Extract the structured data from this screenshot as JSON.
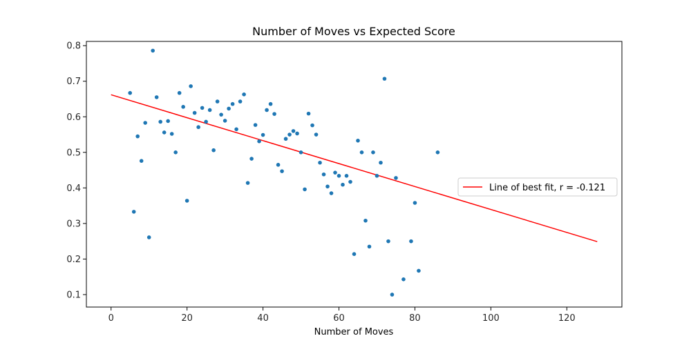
{
  "chart_data": {
    "type": "scatter",
    "title": "Number of Moves vs Expected Score",
    "xlabel": "Number of Moves",
    "ylabel": "",
    "xlim": [
      -6.5,
      134.5
    ],
    "ylim": [
      0.065,
      0.812
    ],
    "xticks": [
      0,
      20,
      40,
      60,
      80,
      100,
      120
    ],
    "yticks": [
      0.1,
      0.2,
      0.3,
      0.4,
      0.5,
      0.6,
      0.7,
      0.8
    ],
    "grid": false,
    "point_color": "#1f77b4",
    "line_color": "#ff0000",
    "series": [
      {
        "x": [
          5,
          6,
          7,
          8,
          9,
          10,
          11,
          12,
          13,
          14,
          15,
          16,
          17,
          18,
          19,
          20,
          21,
          22,
          23,
          24,
          25,
          26,
          27,
          28,
          29,
          30,
          31,
          32,
          33,
          34,
          35,
          36,
          37,
          38,
          39,
          40,
          41,
          42,
          43,
          44,
          45,
          46,
          47,
          48,
          49,
          50,
          51,
          52,
          53,
          54,
          55,
          56,
          57,
          58,
          59,
          60,
          61,
          62,
          63,
          64,
          65,
          66,
          67,
          68,
          69,
          70,
          71,
          72,
          73,
          74,
          75,
          77,
          79,
          80,
          81,
          86
        ],
        "y": [
          0.667,
          0.333,
          0.545,
          0.476,
          0.583,
          0.261,
          0.786,
          0.655,
          0.586,
          0.556,
          0.588,
          0.552,
          0.5,
          0.667,
          0.628,
          0.364,
          0.686,
          0.611,
          0.571,
          0.625,
          0.586,
          0.619,
          0.506,
          0.643,
          0.606,
          0.589,
          0.623,
          0.636,
          0.565,
          0.643,
          0.663,
          0.414,
          0.482,
          0.577,
          0.531,
          0.549,
          0.619,
          0.636,
          0.608,
          0.465,
          0.447,
          0.538,
          0.55,
          0.56,
          0.553,
          0.5,
          0.396,
          0.609,
          0.576,
          0.55,
          0.471,
          0.438,
          0.404,
          0.385,
          0.443,
          0.434,
          0.409,
          0.434,
          0.417,
          0.214,
          0.533,
          0.5,
          0.308,
          0.235,
          0.5,
          0.434,
          0.471,
          0.707,
          0.25,
          0.1,
          0.428,
          0.143,
          0.25,
          0.358,
          0.167,
          0.5
        ]
      },
      {
        "name": "Line of best fit, r = -0.121",
        "type": "line",
        "x": [
          0,
          128
        ],
        "y": [
          0.662,
          0.249
        ]
      }
    ],
    "legend": {
      "position": "center-right",
      "entries": [
        "Line of best fit, r = -0.121"
      ]
    }
  }
}
